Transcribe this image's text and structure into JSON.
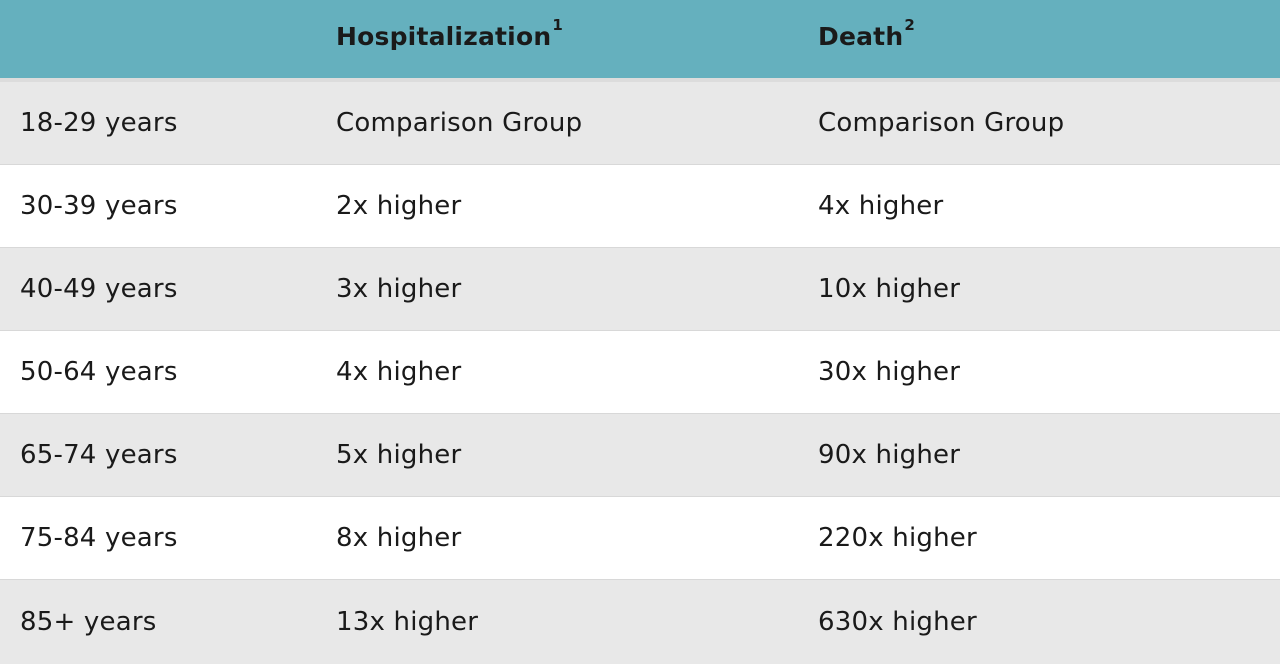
{
  "table": {
    "headers": {
      "age": "",
      "hospitalization": "Hospitalization",
      "hospitalization_note": "1",
      "death": "Death",
      "death_note": "2"
    },
    "rows": [
      {
        "age": "18-29 years",
        "hospitalization": "Comparison Group",
        "death": "Comparison Group"
      },
      {
        "age": "30-39 years",
        "hospitalization": "2x higher",
        "death": "4x higher"
      },
      {
        "age": "40-49 years",
        "hospitalization": "3x higher",
        "death": "10x higher"
      },
      {
        "age": "50-64 years",
        "hospitalization": "4x higher",
        "death": "30x higher"
      },
      {
        "age": "65-74 years",
        "hospitalization": "5x higher",
        "death": "90x higher"
      },
      {
        "age": "75-84 years",
        "hospitalization": "8x higher",
        "death": "220x higher"
      },
      {
        "age": "85+ years",
        "hospitalization": "13x higher",
        "death": "630x higher"
      }
    ]
  },
  "colors": {
    "header_bg": "#65b0be",
    "shaded_row": "#e8e8e8",
    "plain_row": "#ffffff"
  }
}
